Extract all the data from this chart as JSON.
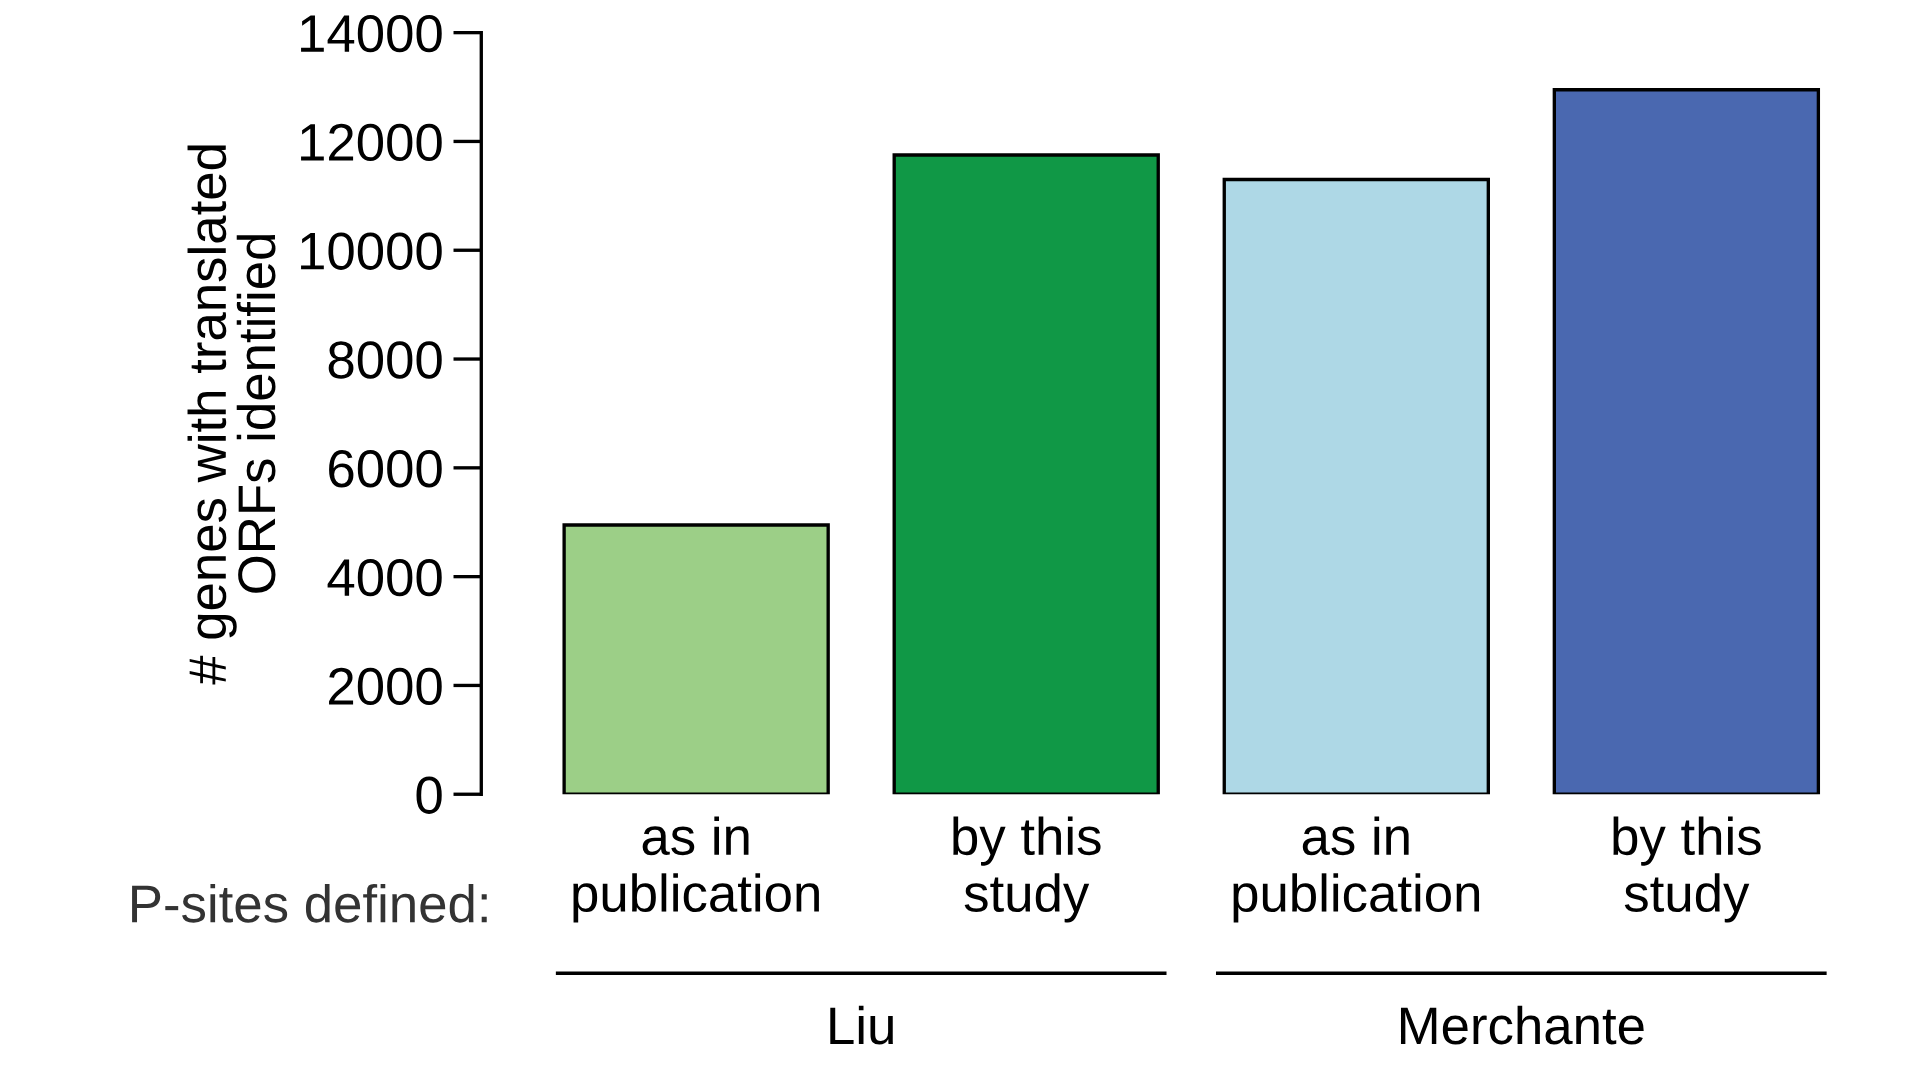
{
  "chart_data": {
    "type": "bar",
    "ylabel": "# genes with translated\nORFs identified",
    "categories": [
      "as in\npublication",
      "by this\nstudy",
      "as in\npublication",
      "by this\nstudy"
    ],
    "values": [
      4950,
      11750,
      11300,
      12950
    ],
    "colors": [
      "#9ccf87",
      "#109846",
      "#aed8e6",
      "#4a68b0"
    ],
    "ylim": [
      0,
      14000
    ],
    "yticks": [
      0,
      2000,
      4000,
      6000,
      8000,
      10000,
      12000,
      14000
    ],
    "grid": false,
    "legend": false,
    "annotations": [
      "P-sites defined:",
      "Liu",
      "Merchante"
    ]
  }
}
